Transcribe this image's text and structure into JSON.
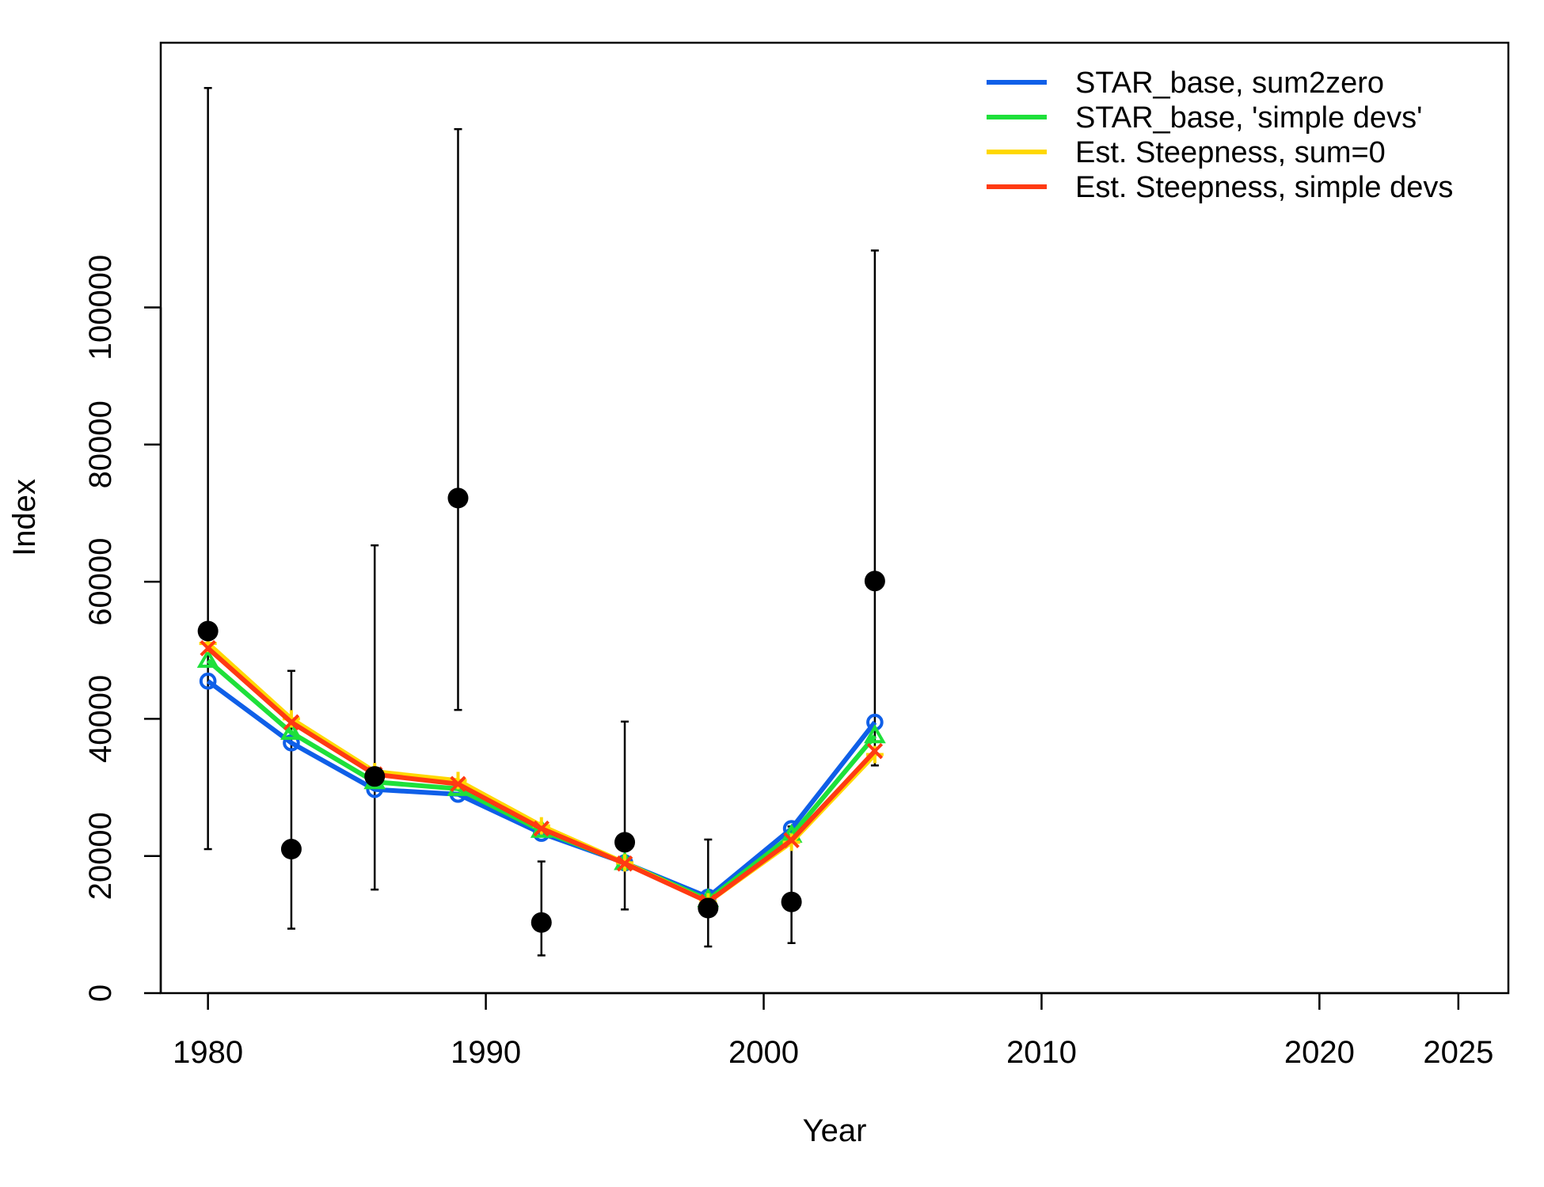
{
  "chart_data": {
    "type": "line",
    "title": "",
    "xlabel": "Year",
    "ylabel": "Index",
    "xlim": [
      1978.3,
      2026.8
    ],
    "ylim": [
      0,
      138600
    ],
    "x_ticks": [
      1980,
      1990,
      2000,
      2010,
      2020,
      2025
    ],
    "y_ticks": [
      0,
      20000,
      40000,
      60000,
      80000,
      100000
    ],
    "grid": false,
    "legend_position": "top-right",
    "observed": {
      "marker": "filled-circle",
      "color": "#000000",
      "points": [
        {
          "x": 1980,
          "y": 52800,
          "lo": 21000,
          "hi": 132000
        },
        {
          "x": 1983,
          "y": 21000,
          "lo": 9400,
          "hi": 47000
        },
        {
          "x": 1986,
          "y": 31600,
          "lo": 15100,
          "hi": 65300
        },
        {
          "x": 1989,
          "y": 72200,
          "lo": 41300,
          "hi": 126000
        },
        {
          "x": 1992,
          "y": 10300,
          "lo": 5500,
          "hi": 19200
        },
        {
          "x": 1995,
          "y": 22000,
          "lo": 12200,
          "hi": 39600
        },
        {
          "x": 1998,
          "y": 12400,
          "lo": 6800,
          "hi": 22400
        },
        {
          "x": 2001,
          "y": 13300,
          "lo": 7300,
          "hi": 24300
        },
        {
          "x": 2004,
          "y": 60100,
          "lo": 33200,
          "hi": 108300
        }
      ]
    },
    "x": [
      1980,
      1983,
      1986,
      1989,
      1992,
      1995,
      1998,
      2001,
      2004
    ],
    "series": [
      {
        "name": "STAR_base, sum2zero",
        "color": "#0f5fe8",
        "marker": "circle",
        "values": [
          45500,
          36500,
          29700,
          29000,
          23300,
          19000,
          14000,
          24000,
          39500
        ]
      },
      {
        "name": "STAR_base, 'simple devs'",
        "color": "#1ee03a",
        "marker": "triangle",
        "values": [
          48500,
          38000,
          30800,
          29800,
          23700,
          19000,
          13600,
          23000,
          37500
        ]
      },
      {
        "name": "Est. Steepness, sum=0",
        "color": "#ffd800",
        "marker": "plus",
        "values": [
          51000,
          40000,
          32300,
          31000,
          24400,
          19000,
          13300,
          22000,
          34800
        ]
      },
      {
        "name": "Est. Steepness, simple devs",
        "color": "#ff3a12",
        "marker": "cross",
        "values": [
          50300,
          39500,
          31900,
          30500,
          24000,
          18900,
          13300,
          22300,
          35300
        ]
      }
    ]
  }
}
